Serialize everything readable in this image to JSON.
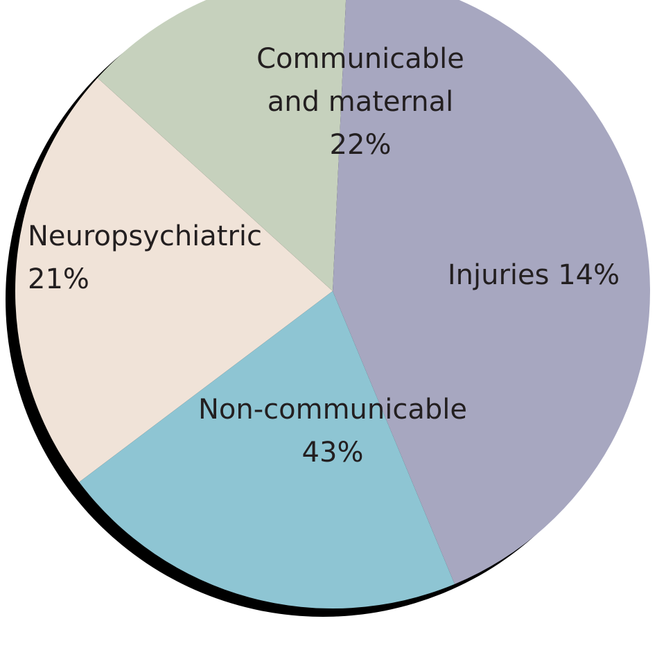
{
  "chart_data": {
    "type": "pie",
    "slices": [
      {
        "name": "Communicable and maternal",
        "label_lines": [
          "Communicable",
          "and maternal",
          "22%"
        ],
        "value": 22,
        "color": "#f0e3d8"
      },
      {
        "name": "Injuries",
        "label_lines": [
          "Injuries 14%"
        ],
        "value": 14,
        "color": "#c6d1bd"
      },
      {
        "name": "Non-communicable",
        "label_lines": [
          "Non-communicable",
          "43%"
        ],
        "value": 43,
        "color": "#a7a7c0"
      },
      {
        "name": "Neuropsychiatric",
        "label_lines": [
          "Neuropsychiatric",
          "21%"
        ],
        "value": 21,
        "color": "#8ec5d3"
      }
    ],
    "title": "",
    "legend": "none"
  },
  "colors": {
    "shadow": "#000000",
    "text": "#231f20",
    "background": "#ffffff"
  }
}
